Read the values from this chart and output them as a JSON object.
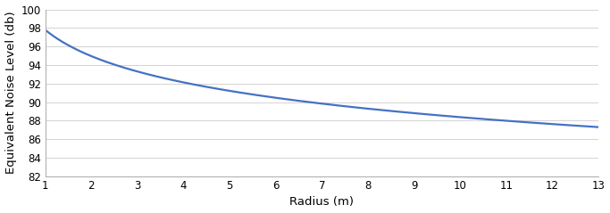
{
  "xlabel": "Radius (m)",
  "ylabel": "Equivalent Noise Level (db)",
  "xlim": [
    1,
    13
  ],
  "ylim": [
    82,
    100
  ],
  "yticks": [
    82,
    84,
    86,
    88,
    90,
    92,
    94,
    96,
    98,
    100
  ],
  "xticks": [
    1,
    2,
    3,
    4,
    5,
    6,
    7,
    8,
    9,
    10,
    11,
    12,
    13
  ],
  "y_at_1": 97.8,
  "y_at_13": 87.3,
  "line_color": "#4472C4",
  "line_width": 1.6,
  "background_color": "#ffffff",
  "grid_color": "#d3d3d3",
  "axis_label_fontsize": 9.5,
  "tick_fontsize": 8.5,
  "figsize": [
    6.83,
    2.39
  ],
  "dpi": 100
}
